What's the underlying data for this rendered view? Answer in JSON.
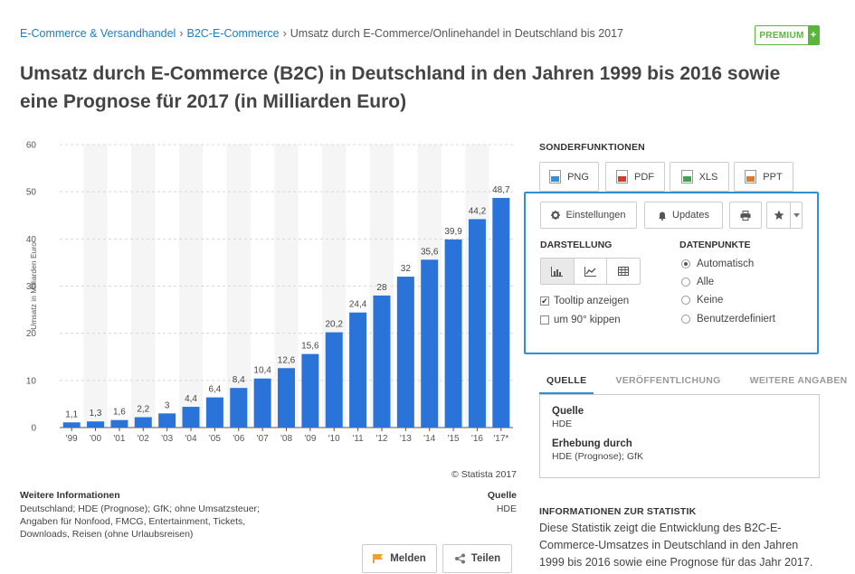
{
  "breadcrumb": {
    "item1": "E-Commerce & Versandhandel",
    "item2": "B2C-E-Commerce",
    "current": "Umsatz durch E-Commerce/Onlinehandel in Deutschland bis 2017",
    "separator": "›"
  },
  "premium": {
    "label": "PREMIUM",
    "plus": "+"
  },
  "title": "Umsatz durch E-Commerce (B2C) in Deutschland in den Jahren 1999 bis 2016 sowie eine Prognose für 2017 (in Milliarden Euro)",
  "chart_data": {
    "type": "bar",
    "categories": [
      "'99",
      "'00",
      "'01",
      "'02",
      "'03",
      "'04",
      "'05",
      "'06",
      "'07",
      "'08",
      "'09",
      "'10",
      "'11",
      "'12",
      "'13",
      "'14",
      "'15",
      "'16",
      "'17*"
    ],
    "values": [
      1.1,
      1.3,
      1.6,
      2.2,
      3,
      4.4,
      6.4,
      8.4,
      10.4,
      12.6,
      15.6,
      20.2,
      24.4,
      28,
      32,
      35.6,
      39.9,
      44.2,
      48.7
    ],
    "value_labels": [
      "1,1",
      "1,3",
      "1,6",
      "2,2",
      "3",
      "4,4",
      "6,4",
      "8,4",
      "10,4",
      "12,6",
      "15,6",
      "20,2",
      "24,4",
      "28",
      "32",
      "35,6",
      "39,9",
      "44,2",
      "48,7"
    ],
    "ylabel": "Umsatz in Milliarden Euro",
    "ylim": [
      0,
      60
    ],
    "yticks": [
      0,
      10,
      20,
      30,
      40,
      50,
      60
    ],
    "bar_color": "#2a73d9",
    "grid": true
  },
  "copyright": "© Statista 2017",
  "weitere": {
    "heading": "Weitere Informationen",
    "text": "Deutschland; HDE (Prognose); GfK; ohne Umsatzsteuer; Angaben für Nonfood, FMCG, Entertainment, Tickets, Downloads, Reisen (ohne Urlaubsreisen)"
  },
  "quelle_left": {
    "heading": "Quelle",
    "value": "HDE"
  },
  "actions": {
    "melden": "Melden",
    "teilen": "Teilen"
  },
  "sonderfunktionen": {
    "title": "SONDERFUNKTIONEN",
    "buttons": [
      {
        "label": "PNG",
        "color": "#3a8fd6"
      },
      {
        "label": "PDF",
        "color": "#d93a2b"
      },
      {
        "label": "XLS",
        "color": "#3aa84a"
      },
      {
        "label": "PPT",
        "color": "#e07a2a"
      }
    ]
  },
  "panel": {
    "einstellungen": "Einstellungen",
    "updates": "Updates",
    "darstellung": "DARSTELLUNG",
    "datenpunkte": "DATENPUNKTE",
    "tooltip": "Tooltip anzeigen",
    "kippen": "um 90° kippen",
    "tooltip_checked": true,
    "kippen_checked": false,
    "radios": [
      "Automatisch",
      "Alle",
      "Keine",
      "Benutzerdefiniert"
    ],
    "radio_selected": "Automatisch"
  },
  "tabs": [
    "QUELLE",
    "VERÖFFENTLICHUNG",
    "WEITERE ANGABEN"
  ],
  "source_box": {
    "quelle_h": "Quelle",
    "quelle_v": "HDE",
    "erhebung_h": "Erhebung durch",
    "erhebung_v": "HDE (Prognose); GfK"
  },
  "stat_info": {
    "title": "INFORMATIONEN ZUR STATISTIK",
    "text": "Diese Statistik zeigt die Entwicklung des B2C-E-Commerce-Umsatzes in Deutschland in den Jahren 1999 bis 2016 sowie eine Prognose für das Jahr 2017."
  }
}
